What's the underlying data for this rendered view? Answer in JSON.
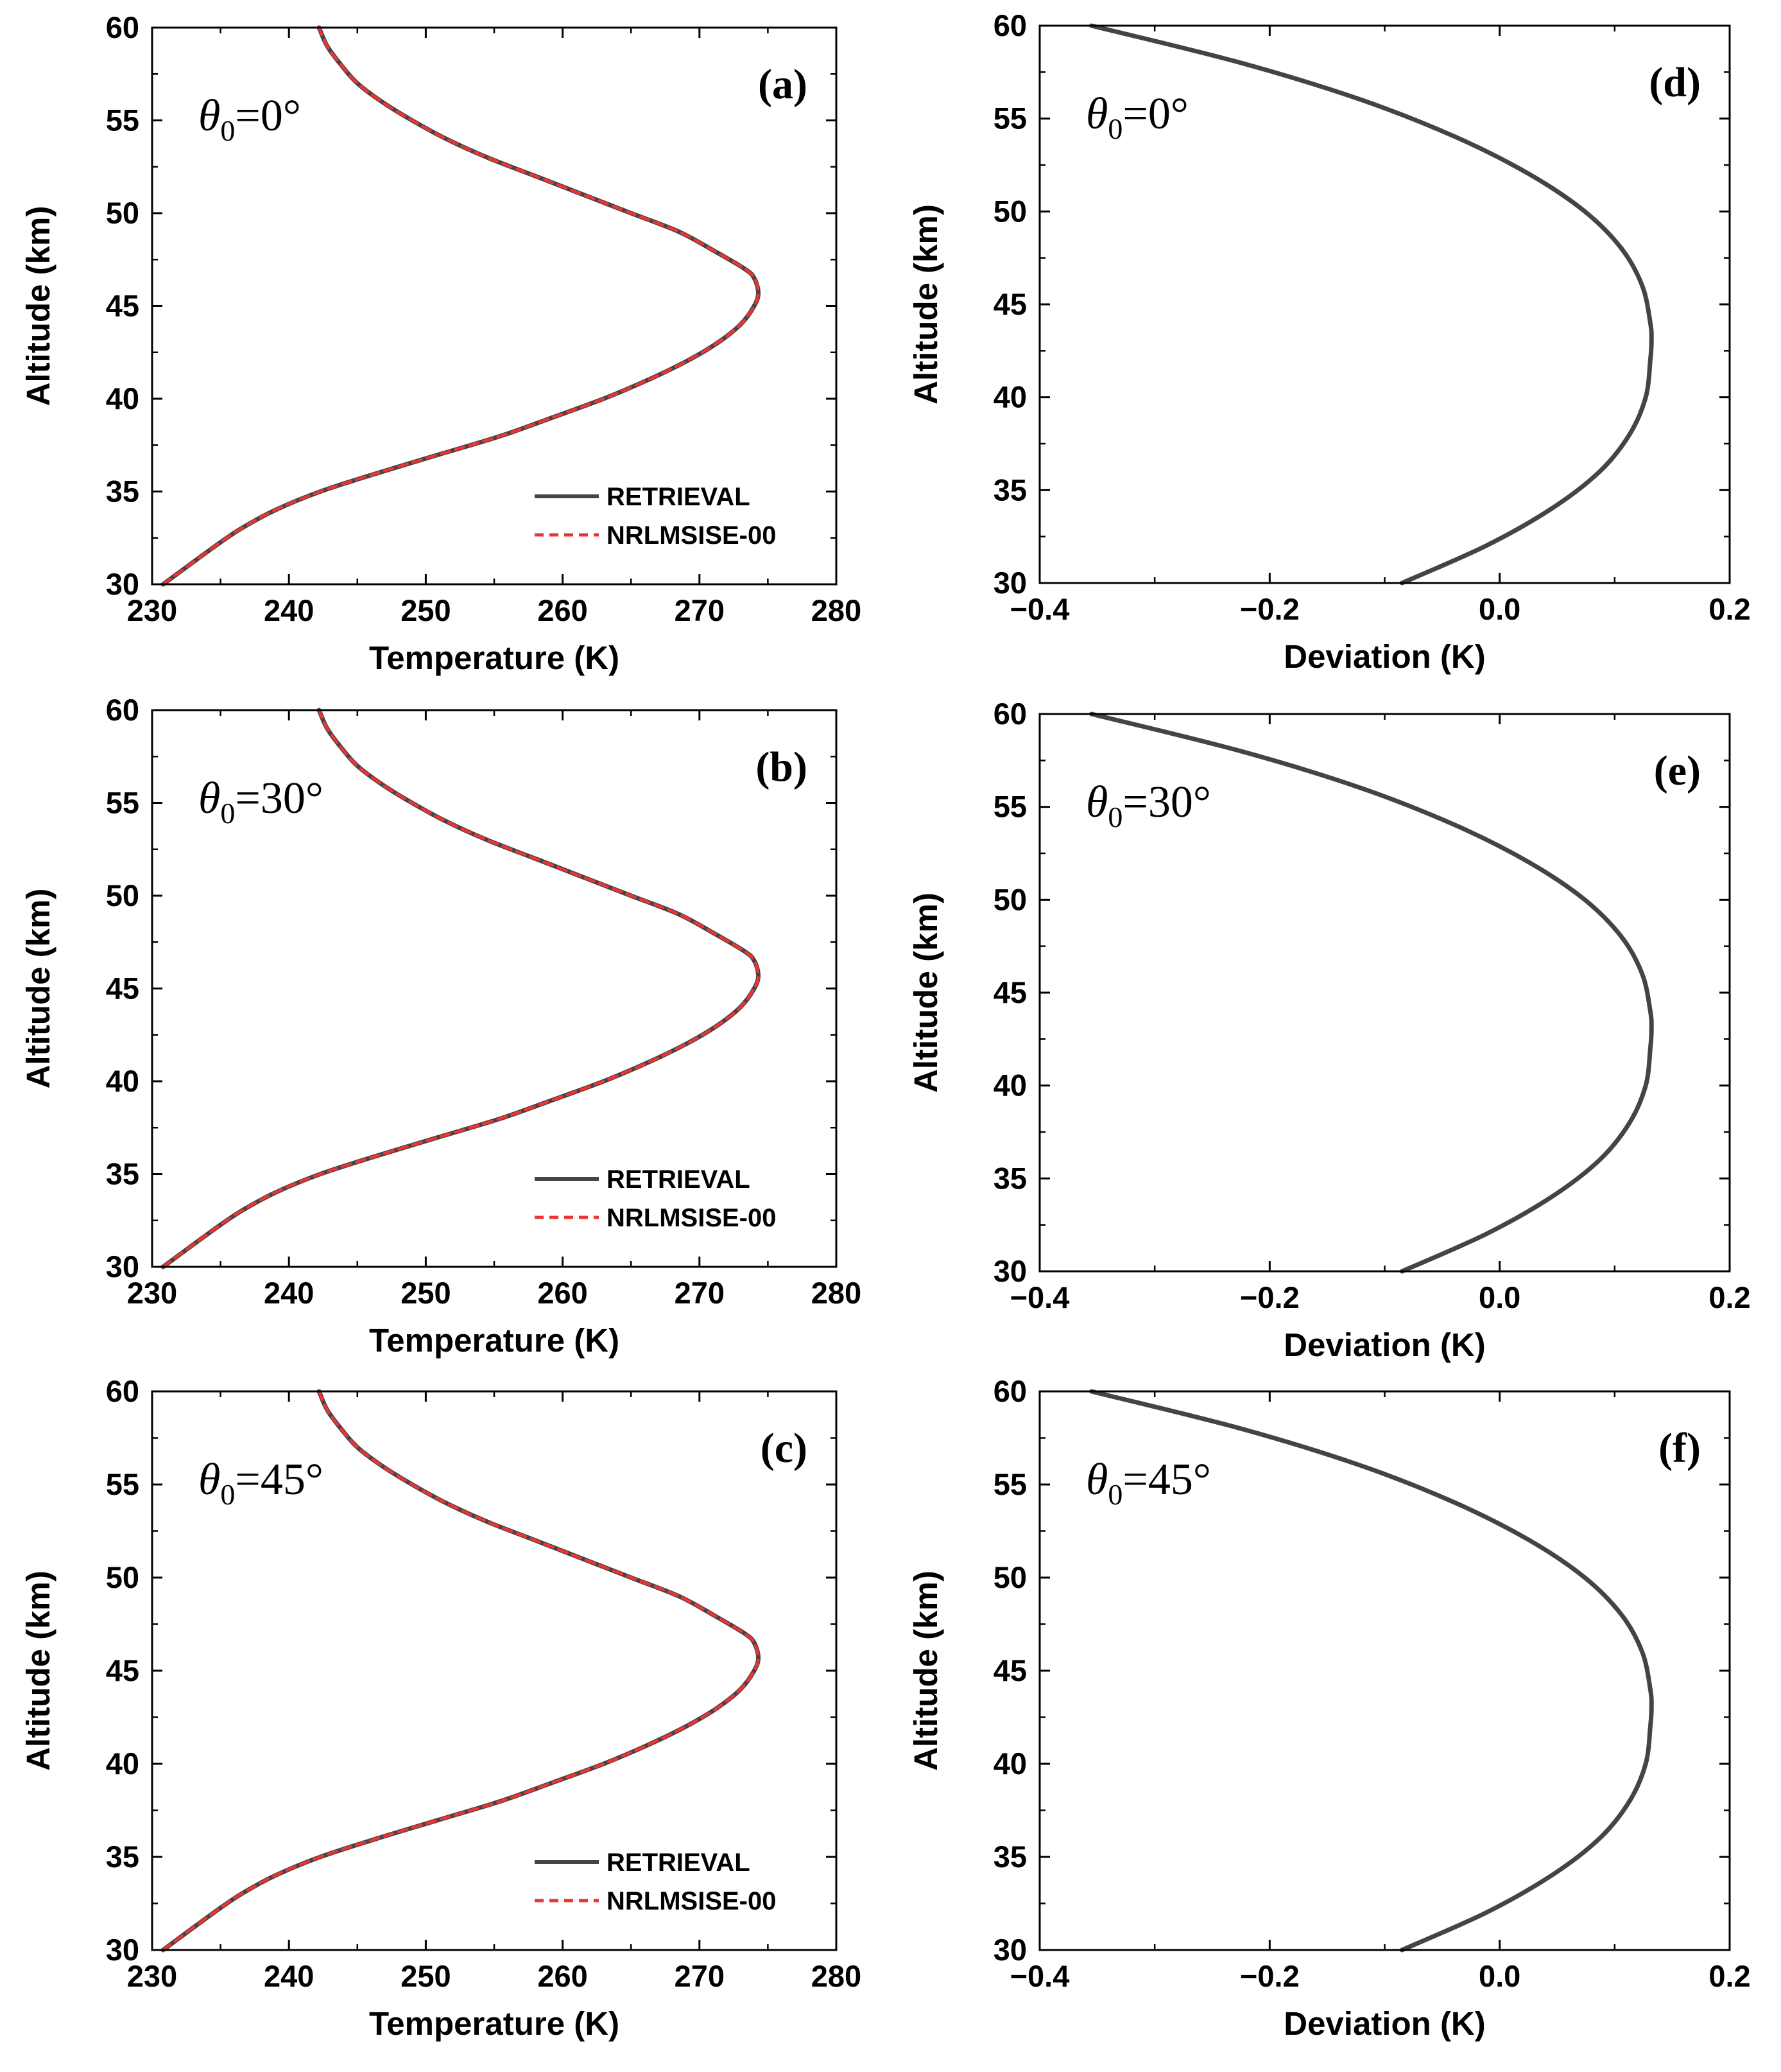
{
  "colors": {
    "retrieval": "#444444",
    "nrlmsise": "#ee3333",
    "deviation": "#444444",
    "axis": "#000000"
  },
  "chart_data": [
    {
      "id": "a",
      "type": "line",
      "tag": "(a)",
      "theta_symbol": "θ",
      "theta_sub": "0",
      "theta_value": "=0°",
      "xlabel": "Temperature (K)",
      "ylabel": "Altitude (km)",
      "xlim": [
        230,
        280
      ],
      "ylim": [
        30,
        60
      ],
      "xticks": [
        "230",
        "240",
        "250",
        "260",
        "270",
        "280"
      ],
      "yticks": [
        "30",
        "35",
        "40",
        "45",
        "50",
        "55",
        "60"
      ],
      "legend": [
        "RETRIEVAL",
        "NRLMSISE-00"
      ],
      "legend_position": "bottom-right",
      "series": [
        {
          "name": "RETRIEVAL",
          "style": "solid",
          "y": [
            30,
            32,
            33,
            34,
            35,
            36,
            37,
            38,
            39,
            40,
            41,
            42,
            43,
            44,
            45,
            45.7,
            46.5,
            47,
            48,
            49,
            50,
            51,
            52,
            53,
            54,
            55,
            56,
            57,
            58,
            59,
            60
          ],
          "x": [
            230.8,
            234.5,
            236.5,
            239,
            242.3,
            246.5,
            251,
            255.5,
            259.3,
            263,
            266.2,
            269,
            271.3,
            273,
            274,
            274.3,
            274,
            273.3,
            271,
            268.5,
            265,
            261.5,
            258,
            254.5,
            251.5,
            249,
            246.8,
            245,
            243.8,
            242.8,
            242.2
          ]
        },
        {
          "name": "NRLMSISE-00",
          "style": "dashed",
          "y": [
            30,
            32,
            33,
            34,
            35,
            36,
            37,
            38,
            39,
            40,
            41,
            42,
            43,
            44,
            45,
            45.7,
            46.5,
            47,
            48,
            49,
            50,
            51,
            52,
            53,
            54,
            55,
            56,
            57,
            58,
            59,
            60
          ],
          "x": [
            230.8,
            234.5,
            236.5,
            239,
            242.3,
            246.5,
            251,
            255.5,
            259.3,
            263,
            266.2,
            269,
            271.3,
            273,
            274,
            274.3,
            274,
            273.3,
            271,
            268.5,
            265,
            261.5,
            258,
            254.5,
            251.5,
            249,
            246.8,
            245,
            243.8,
            242.8,
            242.2
          ]
        }
      ]
    },
    {
      "id": "b",
      "type": "line",
      "tag": "(b)",
      "theta_symbol": "θ",
      "theta_sub": "0",
      "theta_value": "=30°",
      "xlabel": "Temperature (K)",
      "ylabel": "Altitude (km)",
      "xlim": [
        230,
        280
      ],
      "ylim": [
        30,
        60
      ],
      "xticks": [
        "230",
        "240",
        "250",
        "260",
        "270",
        "280"
      ],
      "yticks": [
        "30",
        "35",
        "40",
        "45",
        "50",
        "55",
        "60"
      ],
      "legend": [
        "RETRIEVAL",
        "NRLMSISE-00"
      ],
      "legend_position": "bottom-right",
      "series": [
        {
          "name": "RETRIEVAL",
          "style": "solid",
          "y": [
            30,
            32,
            33,
            34,
            35,
            36,
            37,
            38,
            39,
            40,
            41,
            42,
            43,
            44,
            45,
            45.7,
            46.5,
            47,
            48,
            49,
            50,
            51,
            52,
            53,
            54,
            55,
            56,
            57,
            58,
            59,
            60
          ],
          "x": [
            230.8,
            234.5,
            236.5,
            239,
            242.3,
            246.5,
            251,
            255.5,
            259.3,
            263,
            266.2,
            269,
            271.3,
            273,
            274,
            274.3,
            274,
            273.3,
            271,
            268.5,
            265,
            261.5,
            258,
            254.5,
            251.5,
            249,
            246.8,
            245,
            243.8,
            242.8,
            242.2
          ]
        },
        {
          "name": "NRLMSISE-00",
          "style": "dashed",
          "y": [
            30,
            32,
            33,
            34,
            35,
            36,
            37,
            38,
            39,
            40,
            41,
            42,
            43,
            44,
            45,
            45.7,
            46.5,
            47,
            48,
            49,
            50,
            51,
            52,
            53,
            54,
            55,
            56,
            57,
            58,
            59,
            60
          ],
          "x": [
            230.8,
            234.5,
            236.5,
            239,
            242.3,
            246.5,
            251,
            255.5,
            259.3,
            263,
            266.2,
            269,
            271.3,
            273,
            274,
            274.3,
            274,
            273.3,
            271,
            268.5,
            265,
            261.5,
            258,
            254.5,
            251.5,
            249,
            246.8,
            245,
            243.8,
            242.8,
            242.2
          ]
        }
      ]
    },
    {
      "id": "c",
      "type": "line",
      "tag": "(c)",
      "theta_symbol": "θ",
      "theta_sub": "0",
      "theta_value": "=45°",
      "xlabel": "Temperature (K)",
      "ylabel": "Altitude (km)",
      "xlim": [
        230,
        280
      ],
      "ylim": [
        30,
        60
      ],
      "xticks": [
        "230",
        "240",
        "250",
        "260",
        "270",
        "280"
      ],
      "yticks": [
        "30",
        "35",
        "40",
        "45",
        "50",
        "55",
        "60"
      ],
      "legend": [
        "RETRIEVAL",
        "NRLMSISE-00"
      ],
      "legend_position": "bottom-right",
      "series": [
        {
          "name": "RETRIEVAL",
          "style": "solid",
          "y": [
            30,
            32,
            33,
            34,
            35,
            36,
            37,
            38,
            39,
            40,
            41,
            42,
            43,
            44,
            45,
            45.7,
            46.5,
            47,
            48,
            49,
            50,
            51,
            52,
            53,
            54,
            55,
            56,
            57,
            58,
            59,
            60
          ],
          "x": [
            230.8,
            234.5,
            236.5,
            239,
            242.3,
            246.5,
            251,
            255.5,
            259.3,
            263,
            266.2,
            269,
            271.3,
            273,
            274,
            274.3,
            274,
            273.3,
            271,
            268.5,
            265,
            261.5,
            258,
            254.5,
            251.5,
            249,
            246.8,
            245,
            243.8,
            242.8,
            242.2
          ]
        },
        {
          "name": "NRLMSISE-00",
          "style": "dashed",
          "y": [
            30,
            32,
            33,
            34,
            35,
            36,
            37,
            38,
            39,
            40,
            41,
            42,
            43,
            44,
            45,
            45.7,
            46.5,
            47,
            48,
            49,
            50,
            51,
            52,
            53,
            54,
            55,
            56,
            57,
            58,
            59,
            60
          ],
          "x": [
            230.8,
            234.5,
            236.5,
            239,
            242.3,
            246.5,
            251,
            255.5,
            259.3,
            263,
            266.2,
            269,
            271.3,
            273,
            274,
            274.3,
            274,
            273.3,
            271,
            268.5,
            265,
            261.5,
            258,
            254.5,
            251.5,
            249,
            246.8,
            245,
            243.8,
            242.8,
            242.2
          ]
        }
      ]
    },
    {
      "id": "d",
      "type": "line",
      "tag": "(d)",
      "theta_symbol": "θ",
      "theta_sub": "0",
      "theta_value": "=0°",
      "xlabel": "Deviation (K)",
      "ylabel": "Altitude (km)",
      "xlim": [
        -0.4,
        0.2
      ],
      "ylim": [
        30,
        60
      ],
      "xticks": [
        "−0.4",
        "−0.2",
        "0.0",
        "0.2"
      ],
      "yticks": [
        "30",
        "35",
        "40",
        "45",
        "50",
        "55",
        "60"
      ],
      "series": [
        {
          "name": "Deviation",
          "style": "solid",
          "y": [
            30,
            32,
            34,
            36,
            38,
            40,
            42,
            43,
            44,
            46,
            48,
            50,
            52,
            54,
            56,
            58,
            60
          ],
          "x": [
            -0.085,
            -0.012,
            0.045,
            0.087,
            0.113,
            0.127,
            0.131,
            0.132,
            0.131,
            0.124,
            0.106,
            0.074,
            0.026,
            -0.038,
            -0.12,
            -0.225,
            -0.355
          ]
        }
      ]
    },
    {
      "id": "e",
      "type": "line",
      "tag": "(e)",
      "theta_symbol": "θ",
      "theta_sub": "0",
      "theta_value": "=30°",
      "xlabel": "Deviation (K)",
      "ylabel": "Altitude (km)",
      "xlim": [
        -0.4,
        0.2
      ],
      "ylim": [
        30,
        60
      ],
      "xticks": [
        "−0.4",
        "−0.2",
        "0.0",
        "0.2"
      ],
      "yticks": [
        "30",
        "35",
        "40",
        "45",
        "50",
        "55",
        "60"
      ],
      "series": [
        {
          "name": "Deviation",
          "style": "solid",
          "y": [
            30,
            32,
            34,
            36,
            38,
            40,
            42,
            43,
            44,
            46,
            48,
            50,
            52,
            54,
            56,
            58,
            60
          ],
          "x": [
            -0.085,
            -0.012,
            0.045,
            0.087,
            0.113,
            0.127,
            0.131,
            0.132,
            0.131,
            0.124,
            0.106,
            0.074,
            0.026,
            -0.038,
            -0.12,
            -0.225,
            -0.355
          ]
        }
      ]
    },
    {
      "id": "f",
      "type": "line",
      "tag": "(f)",
      "theta_symbol": "θ",
      "theta_sub": "0",
      "theta_value": "=45°",
      "xlabel": "Deviation (K)",
      "ylabel": "Altitude (km)",
      "xlim": [
        -0.4,
        0.2
      ],
      "ylim": [
        30,
        60
      ],
      "xticks": [
        "−0.4",
        "−0.2",
        "0.0",
        "0.2"
      ],
      "yticks": [
        "30",
        "35",
        "40",
        "45",
        "50",
        "55",
        "60"
      ],
      "series": [
        {
          "name": "Deviation",
          "style": "solid",
          "y": [
            30,
            32,
            34,
            36,
            38,
            40,
            42,
            43,
            44,
            46,
            48,
            50,
            52,
            54,
            56,
            58,
            60
          ],
          "x": [
            -0.085,
            -0.012,
            0.045,
            0.087,
            0.113,
            0.127,
            0.131,
            0.132,
            0.131,
            0.124,
            0.106,
            0.074,
            0.026,
            -0.038,
            -0.12,
            -0.225,
            -0.355
          ]
        }
      ]
    }
  ]
}
